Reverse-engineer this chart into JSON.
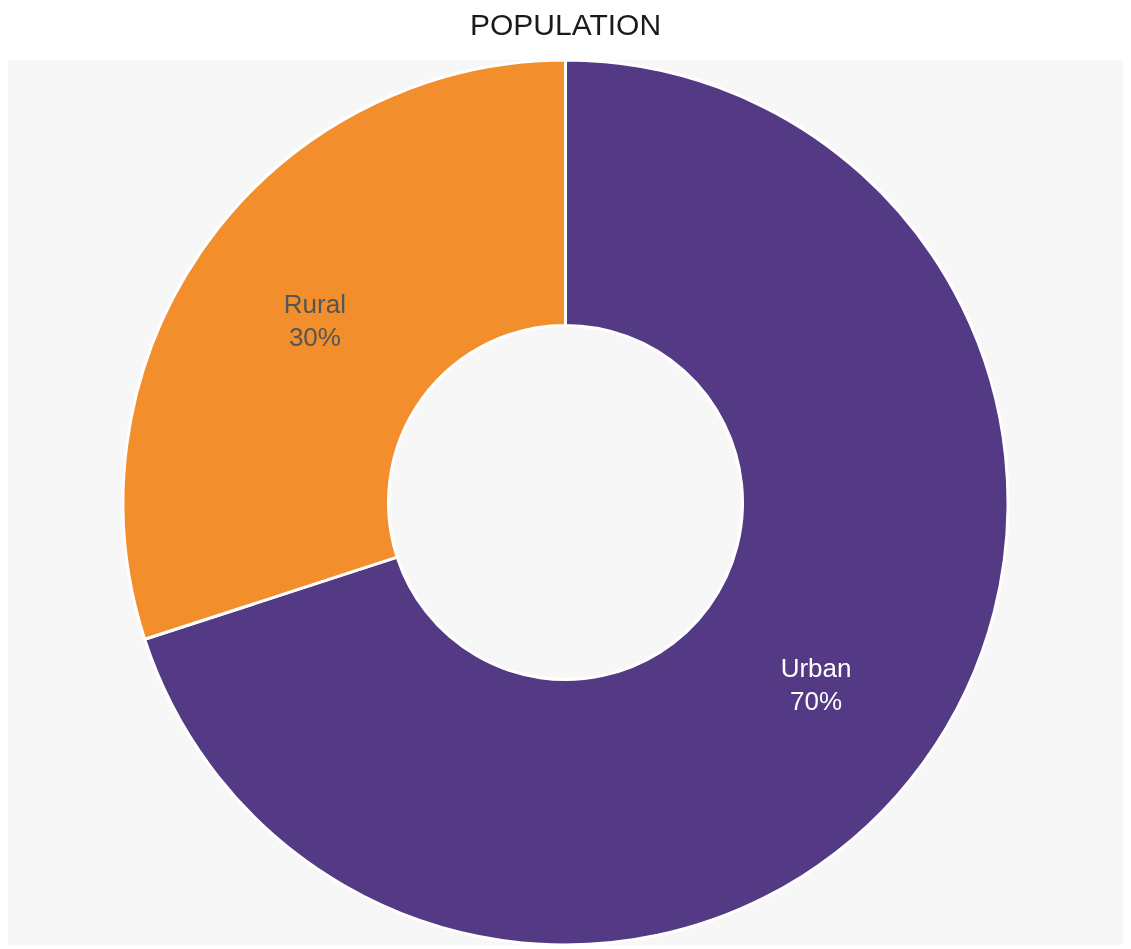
{
  "chart_data": {
    "type": "donut",
    "title": "POPULATION",
    "categories": [
      "Urban",
      "Rural"
    ],
    "values": [
      70,
      30
    ],
    "value_labels": [
      "70%",
      "30%"
    ],
    "colors": [
      "#543a84",
      "#f28f2c"
    ],
    "legend": false
  }
}
